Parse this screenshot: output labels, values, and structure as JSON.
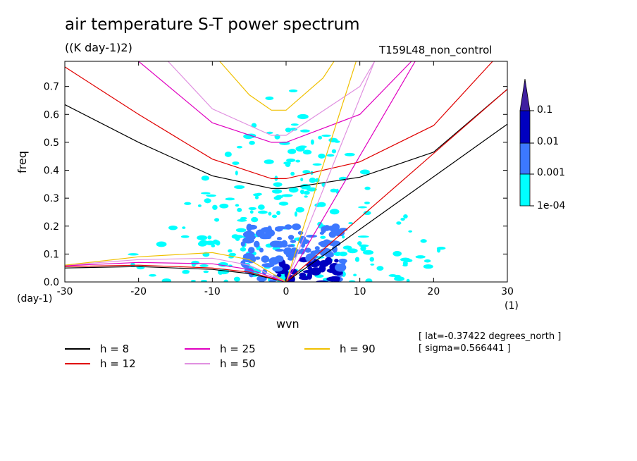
{
  "title": "air temperature S-T power spectrum",
  "subtitle": "((K day-1)2)",
  "run_label": "T159L48_non_control",
  "y_unit_label": "(day-1)",
  "x_unit_label": "(1)",
  "info_lines": [
    "[ lat=-0.37422 degrees_north ]",
    "[ sigma=0.566441 ]"
  ],
  "legend": [
    {
      "label": "h =  8",
      "color": "#000000"
    },
    {
      "label": "h = 12",
      "color": "#e00000"
    },
    {
      "label": "h = 25",
      "color": "#e000c0"
    },
    {
      "label": "h = 50",
      "color": "#e090e0"
    },
    {
      "label": "h = 90",
      "color": "#f0c000"
    }
  ],
  "colorbar": {
    "levels": [
      "0.1",
      "0.01",
      "0.001",
      "1e-04"
    ],
    "colors": [
      "#000078",
      "#0000c0",
      "#3c78ff",
      "#00ffff",
      "#4020a0"
    ]
  },
  "chart_data": {
    "type": "heatmap",
    "title": "air temperature S-T power spectrum",
    "xlabel": "wvn",
    "ylabel": "freq",
    "xlim": [
      -30,
      30
    ],
    "ylim": [
      0,
      0.79
    ],
    "xticks": [
      -30,
      -20,
      -10,
      0,
      10,
      20,
      30
    ],
    "yticks": [
      0.0,
      0.1,
      0.2,
      0.3,
      0.4,
      0.5,
      0.6,
      0.7
    ],
    "ytick_labels": [
      "0.0",
      "0.1",
      "0.2",
      "0.3",
      "0.4",
      "0.5",
      "0.6",
      "0.7"
    ],
    "dispersion_curves": [
      {
        "h": 8,
        "kelvin_x": [
          0,
          30
        ],
        "kelvin_y": [
          0,
          0.565
        ],
        "ig_x": [
          -30,
          -20,
          -10,
          -2,
          0,
          10,
          20,
          30
        ],
        "ig_y": [
          0.635,
          0.5,
          0.38,
          0.335,
          0.335,
          0.375,
          0.465,
          0.69
        ],
        "rossby_x": [
          -30,
          -20,
          -10,
          -5,
          0
        ],
        "rossby_y": [
          0.05,
          0.055,
          0.045,
          0.03,
          0
        ]
      },
      {
        "h": 12,
        "kelvin_x": [
          0,
          30
        ],
        "kelvin_y": [
          0,
          0.69
        ],
        "ig_x": [
          -30,
          -20,
          -10,
          -2,
          0,
          10,
          20,
          28
        ],
        "ig_y": [
          0.77,
          0.6,
          0.44,
          0.37,
          0.37,
          0.43,
          0.56,
          0.79
        ],
        "rossby_x": [
          -30,
          -20,
          -10,
          -5,
          0
        ],
        "rossby_y": [
          0.055,
          0.06,
          0.05,
          0.035,
          0
        ]
      },
      {
        "h": 25,
        "kelvin_x": [
          0,
          17.5
        ],
        "kelvin_y": [
          0,
          0.79
        ],
        "ig_x": [
          -20,
          -10,
          -2,
          0,
          10,
          17
        ],
        "ig_y": [
          0.79,
          0.57,
          0.5,
          0.5,
          0.6,
          0.79
        ],
        "rossby_x": [
          -30,
          -20,
          -10,
          -5,
          0
        ],
        "rossby_y": [
          0.058,
          0.07,
          0.065,
          0.045,
          0
        ]
      },
      {
        "h": 50,
        "kelvin_x": [
          0,
          12
        ],
        "kelvin_y": [
          0,
          0.79
        ],
        "ig_x": [
          -16,
          -10,
          -2,
          0,
          10,
          12
        ],
        "ig_y": [
          0.79,
          0.62,
          0.525,
          0.525,
          0.7,
          0.79
        ],
        "rossby_x": [
          -30,
          -20,
          -10,
          -5,
          0
        ],
        "rossby_y": [
          0.06,
          0.08,
          0.085,
          0.06,
          0
        ]
      },
      {
        "h": 90,
        "kelvin_x": [
          0,
          9.5
        ],
        "kelvin_y": [
          0,
          0.79
        ],
        "ig_x": [
          -9,
          -5,
          -2,
          0,
          5,
          6.5
        ],
        "ig_y": [
          0.79,
          0.67,
          0.615,
          0.615,
          0.73,
          0.79
        ],
        "rossby_x": [
          -30,
          -20,
          -10,
          -5,
          0
        ],
        "rossby_y": [
          0.06,
          0.09,
          0.105,
          0.08,
          0
        ]
      }
    ]
  }
}
